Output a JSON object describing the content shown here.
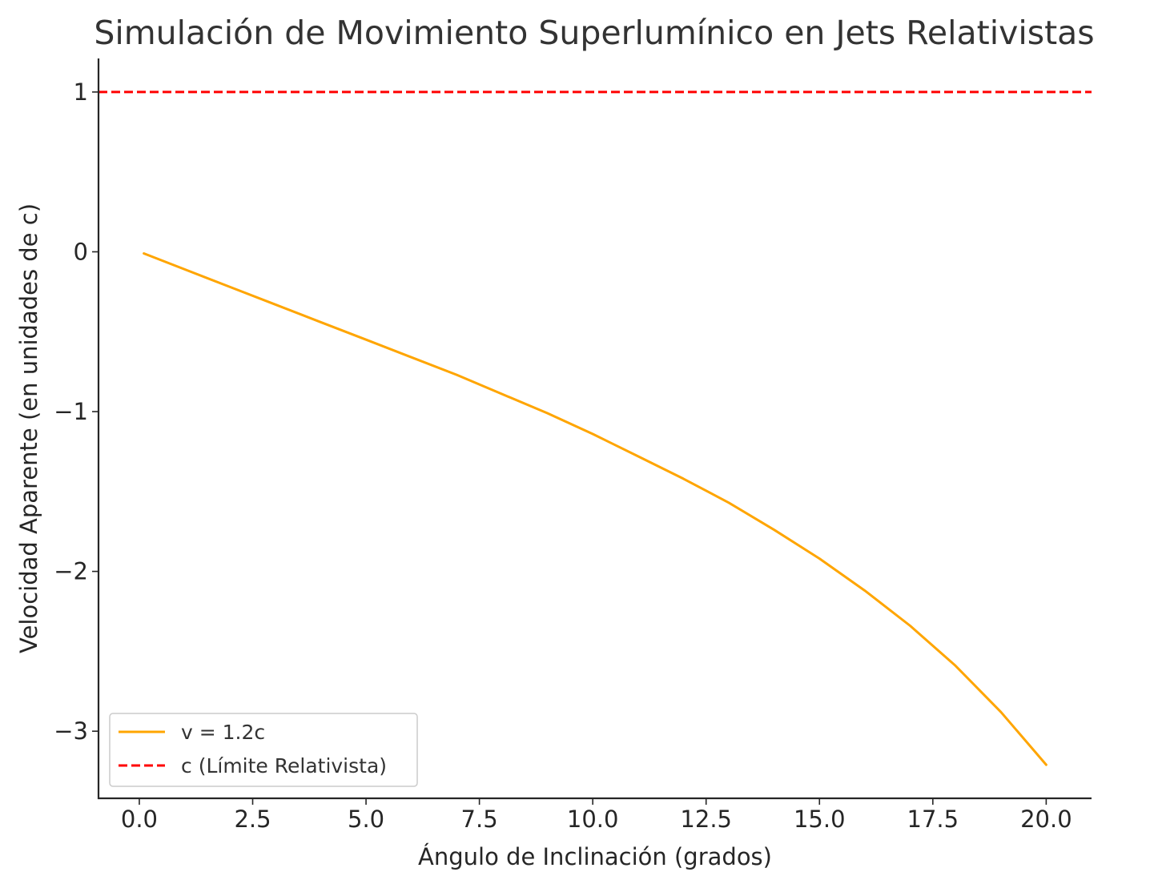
{
  "chart_data": {
    "type": "line",
    "title": "Simulación de Movimiento Superlumínico en Jets Relativistas",
    "xlabel": "Ángulo de Inclinación (grados)",
    "ylabel": "Velocidad Aparente (en unidades de c)",
    "xlim": [
      -0.9,
      21.0
    ],
    "ylim": [
      -3.42,
      1.21
    ],
    "x_ticks": [
      0.0,
      2.5,
      5.0,
      7.5,
      10.0,
      12.5,
      15.0,
      17.5,
      20.0
    ],
    "x_tick_labels": [
      "0.0",
      "2.5",
      "5.0",
      "7.5",
      "10.0",
      "12.5",
      "15.0",
      "17.5",
      "20.0"
    ],
    "y_ticks": [
      1,
      0,
      -1,
      -2,
      -3
    ],
    "y_tick_labels": [
      "1",
      "0",
      "−1",
      "−2",
      "−3"
    ],
    "grid": false,
    "legend_position": "lower-left",
    "series": [
      {
        "name": "v = 1.2c",
        "style": "solid",
        "color": "#FFA500",
        "x": [
          0.1,
          1,
          2,
          3,
          4,
          5,
          6,
          7,
          8,
          9,
          10,
          11,
          12,
          13,
          14,
          15,
          16,
          17,
          18,
          19,
          20
        ],
        "y": [
          -0.01,
          -0.11,
          -0.22,
          -0.33,
          -0.44,
          -0.55,
          -0.66,
          -0.77,
          -0.89,
          -1.01,
          -1.14,
          -1.28,
          -1.42,
          -1.57,
          -1.74,
          -1.92,
          -2.12,
          -2.34,
          -2.59,
          -2.88,
          -3.21
        ]
      },
      {
        "name": "c (Límite Relativista)",
        "style": "dashed",
        "color": "#FF0000",
        "x": [
          -0.9,
          21.0
        ],
        "y": [
          1,
          1
        ]
      }
    ]
  }
}
